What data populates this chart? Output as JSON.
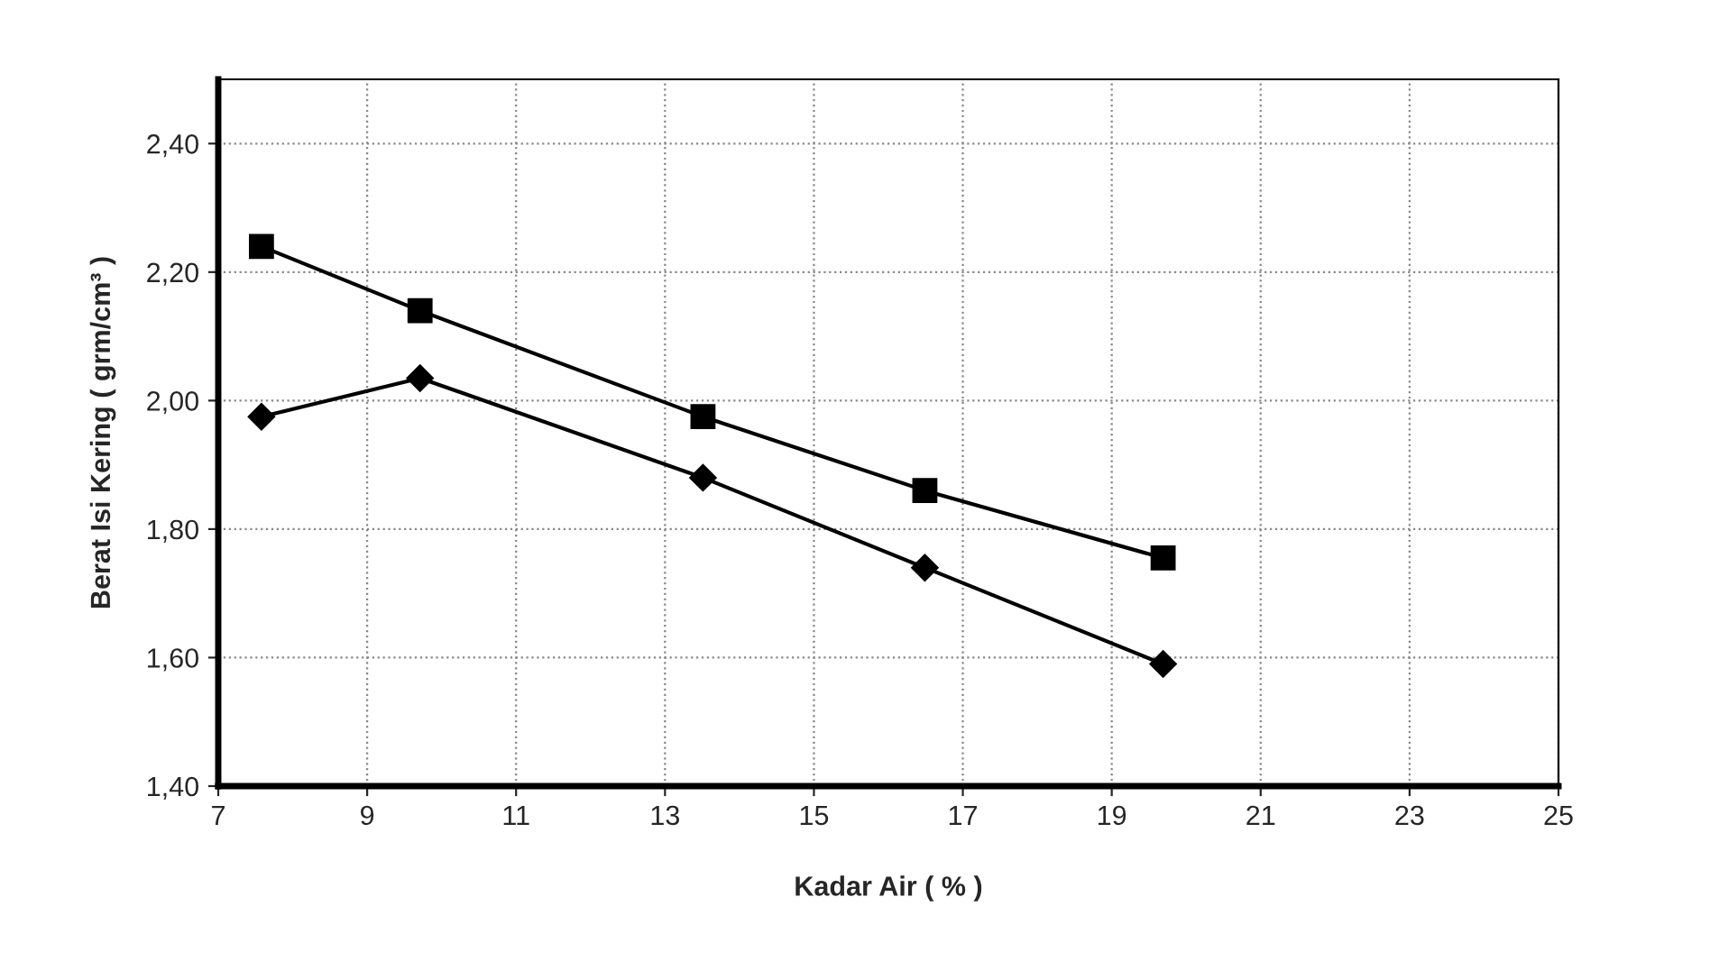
{
  "chart_data": {
    "type": "line",
    "xlabel": "Kadar Air ( % )",
    "ylabel": "Berat Isi Kering ( grm/cm³ )",
    "xlim": [
      7,
      25
    ],
    "xticks": [
      7,
      9,
      11,
      13,
      15,
      17,
      19,
      21,
      23,
      25
    ],
    "ylim": [
      1.4,
      2.5
    ],
    "yticks": [
      {
        "value": 1.4,
        "label": "1,40"
      },
      {
        "value": 1.6,
        "label": "1,60"
      },
      {
        "value": 1.8,
        "label": "1,80"
      },
      {
        "value": 2.0,
        "label": "2,00"
      },
      {
        "value": 2.2,
        "label": "2,20"
      },
      {
        "value": 2.4,
        "label": "2,40"
      }
    ],
    "grid": true,
    "line_style": "solid",
    "series": [
      {
        "color": "#000000",
        "marker": "square",
        "x": [
          7.58,
          9.71,
          13.51,
          16.49,
          19.69
        ],
        "values": [
          2.24,
          2.14,
          1.975,
          1.86,
          1.755
        ]
      },
      {
        "color": "#000000",
        "marker": "diamond",
        "x": [
          7.58,
          9.71,
          13.51,
          16.49,
          19.69
        ],
        "values": [
          1.975,
          2.035,
          1.88,
          1.74,
          1.59
        ]
      }
    ]
  }
}
